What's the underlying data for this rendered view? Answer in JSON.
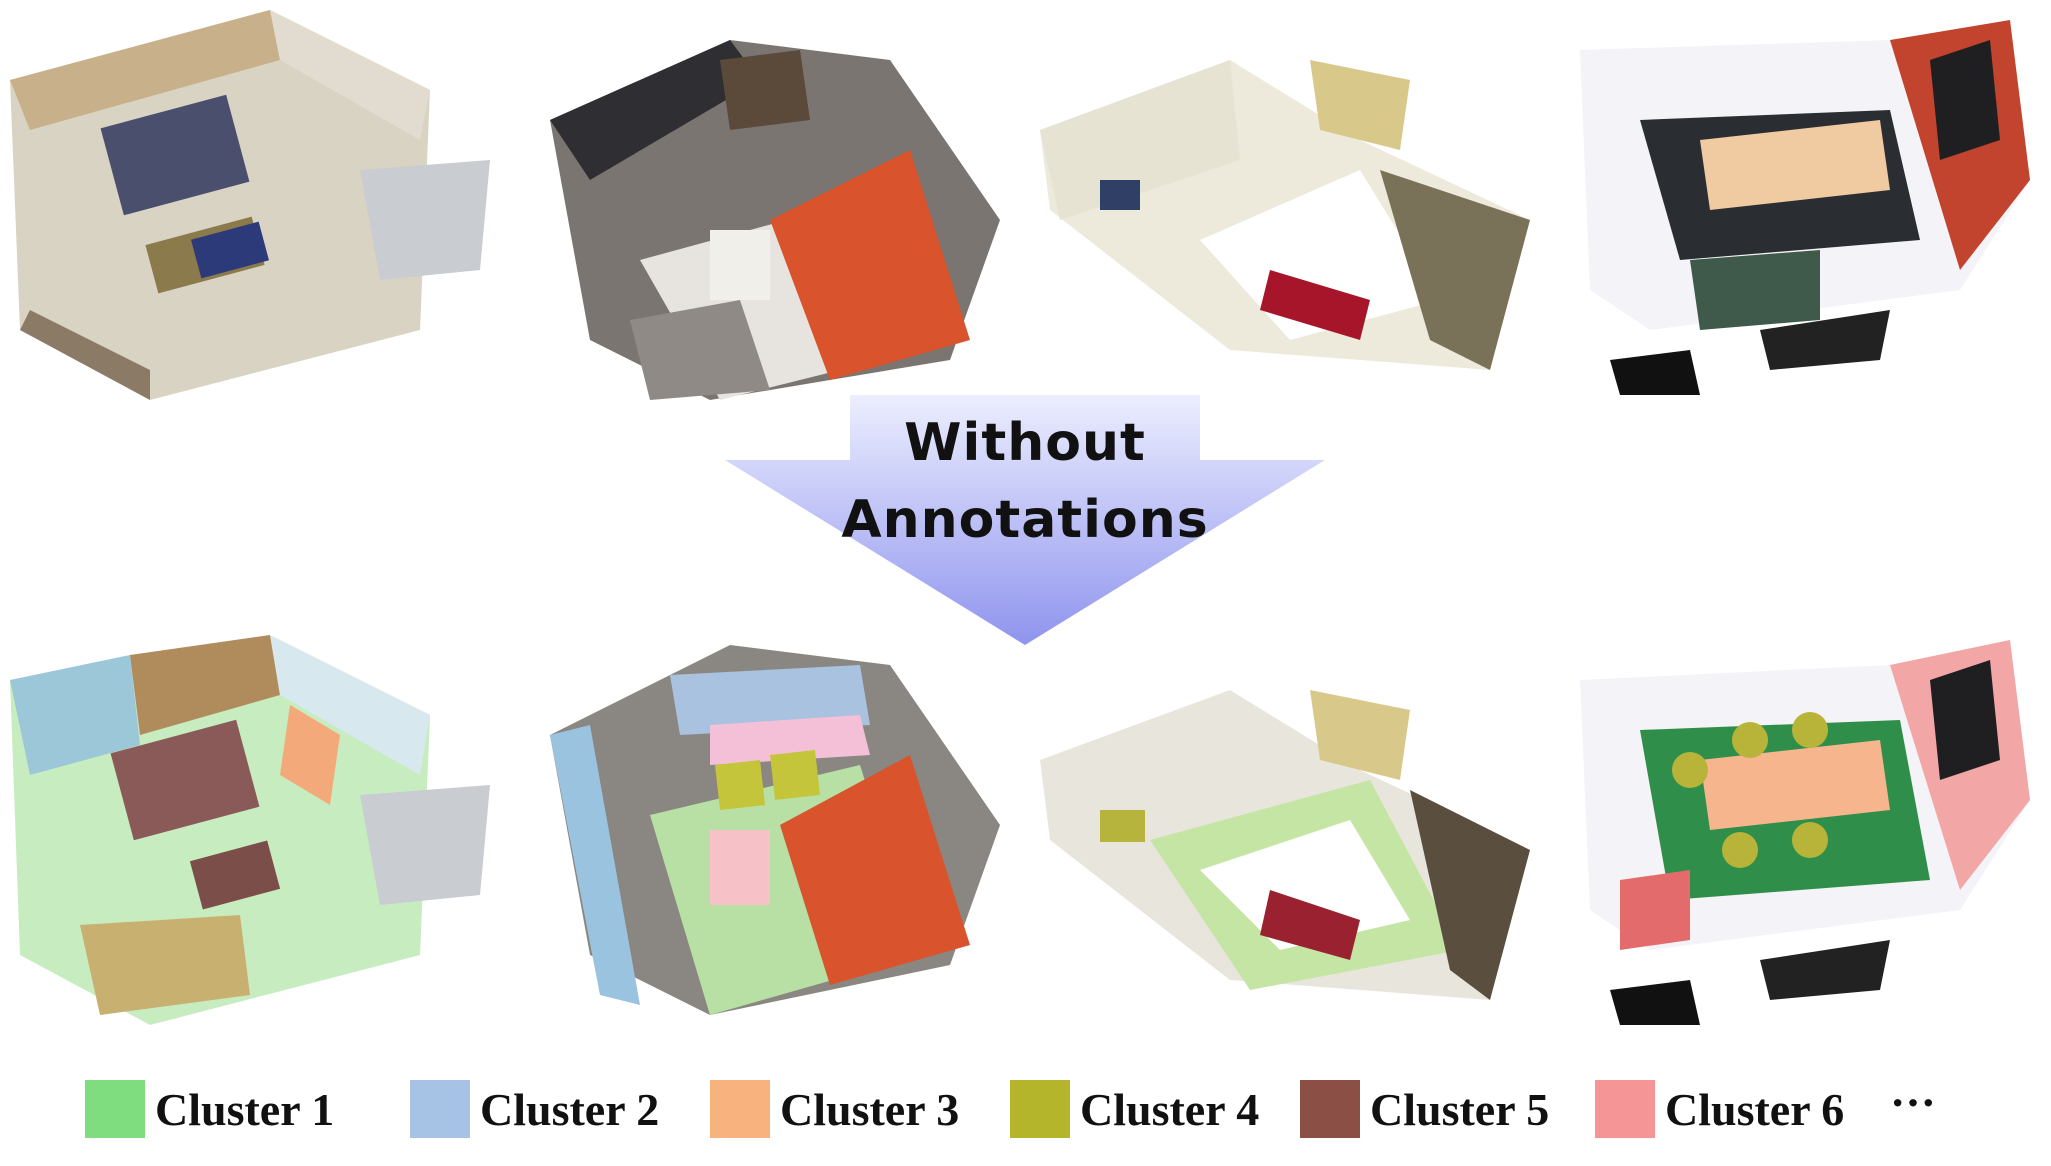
{
  "arrow": {
    "line1": "Without",
    "line2": "Annotations",
    "color_top": "#eceefe",
    "color_bottom": "#8f94ee"
  },
  "scenes": {
    "top": [
      "original-scene-1",
      "original-scene-2",
      "original-scene-3",
      "original-scene-4"
    ],
    "bottom": [
      "clustered-scene-1",
      "clustered-scene-2",
      "clustered-scene-3",
      "clustered-scene-4"
    ]
  },
  "legend": {
    "items": [
      {
        "label": "Cluster 1",
        "color": "#7fdc7f"
      },
      {
        "label": "Cluster 2",
        "color": "#a6c2e4"
      },
      {
        "label": "Cluster 3",
        "color": "#f8b27e"
      },
      {
        "label": "Cluster 4",
        "color": "#b5b52c"
      },
      {
        "label": "Cluster 5",
        "color": "#8c4f45"
      },
      {
        "label": "Cluster 6",
        "color": "#f59595"
      }
    ],
    "more": "···"
  }
}
